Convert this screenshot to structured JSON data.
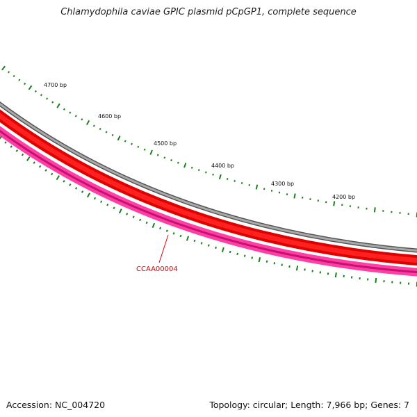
{
  "title": "Chlamydophila caviae GPIC plasmid pCpGP1, complete sequence",
  "accession": "Accession: NC_004720",
  "summary": "Topology: circular; Length: 7,966 bp; Genes: 7",
  "colors": {
    "background": "#ffffff",
    "backbone": "#7f7f7f",
    "cds_track": "#ff0000",
    "gene_track": "#ff1493",
    "ticks": "#1a7f1a",
    "gene_label": "#e00000"
  },
  "scale_labels": [
    "4700 bp",
    "4600 bp",
    "4500 bp",
    "4400 bp",
    "4300 bp",
    "4200 bp"
  ],
  "gene_labels": [
    "CCAA00004"
  ]
}
